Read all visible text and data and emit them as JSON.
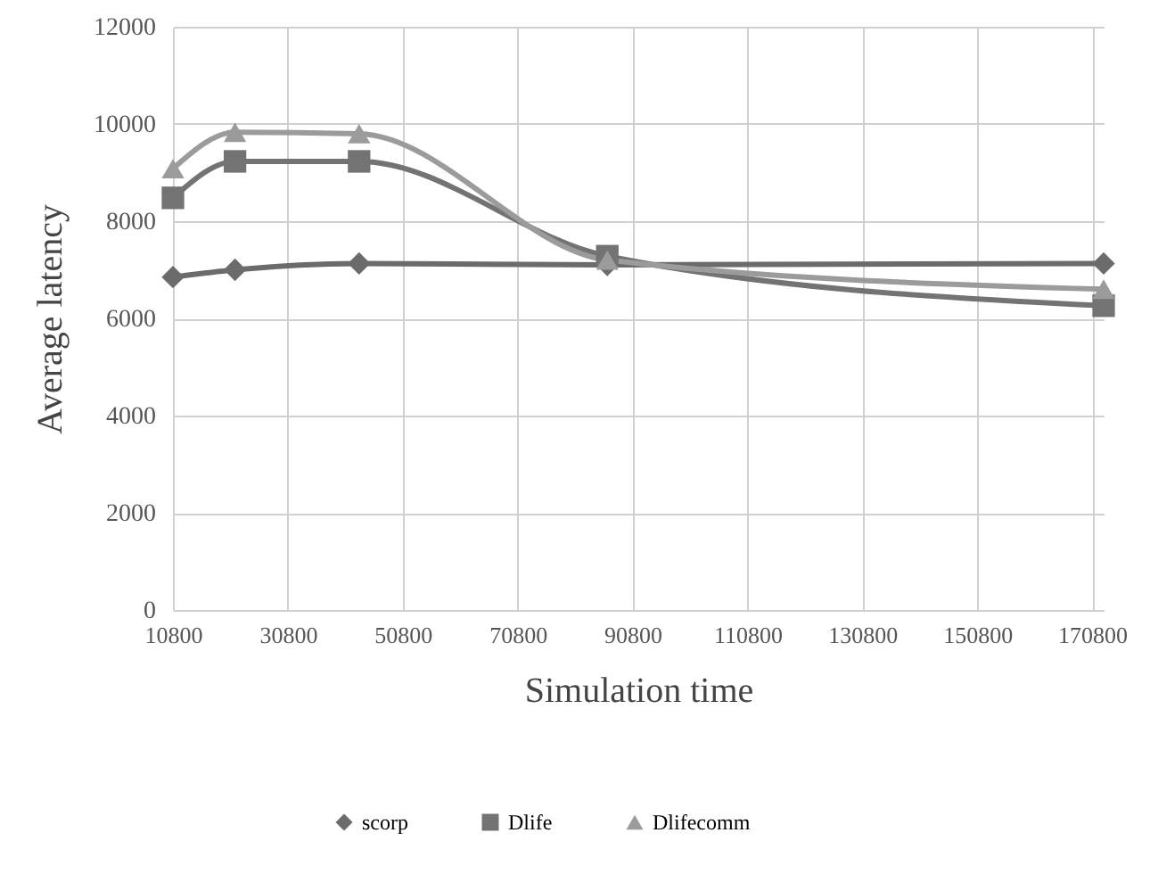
{
  "chart_data": {
    "type": "line",
    "xlabel": "Simulation time",
    "ylabel": "Average  latency",
    "x": [
      10800,
      21600,
      43200,
      86400,
      172800
    ],
    "series": [
      {
        "name": "scorp",
        "color": "#6b6b6b",
        "marker": "diamond",
        "values": [
          6850,
          7000,
          7130,
          7100,
          7130
        ]
      },
      {
        "name": "Dlife",
        "color": "#737373",
        "marker": "square",
        "values": [
          8480,
          9230,
          9230,
          7280,
          6260
        ]
      },
      {
        "name": "Dlifecomm",
        "color": "#9b9b9b",
        "marker": "triangle",
        "values": [
          9080,
          9830,
          9800,
          7200,
          6600
        ]
      }
    ],
    "xlim": [
      10800,
      172800
    ],
    "xticks": [
      10800,
      30800,
      50800,
      70800,
      90800,
      110800,
      130800,
      150800,
      170800
    ],
    "ylim": [
      0,
      12000
    ],
    "yticks": [
      0,
      2000,
      4000,
      6000,
      8000,
      10000,
      12000
    ],
    "grid": true,
    "legend": "bottom",
    "line_style": "solid"
  }
}
